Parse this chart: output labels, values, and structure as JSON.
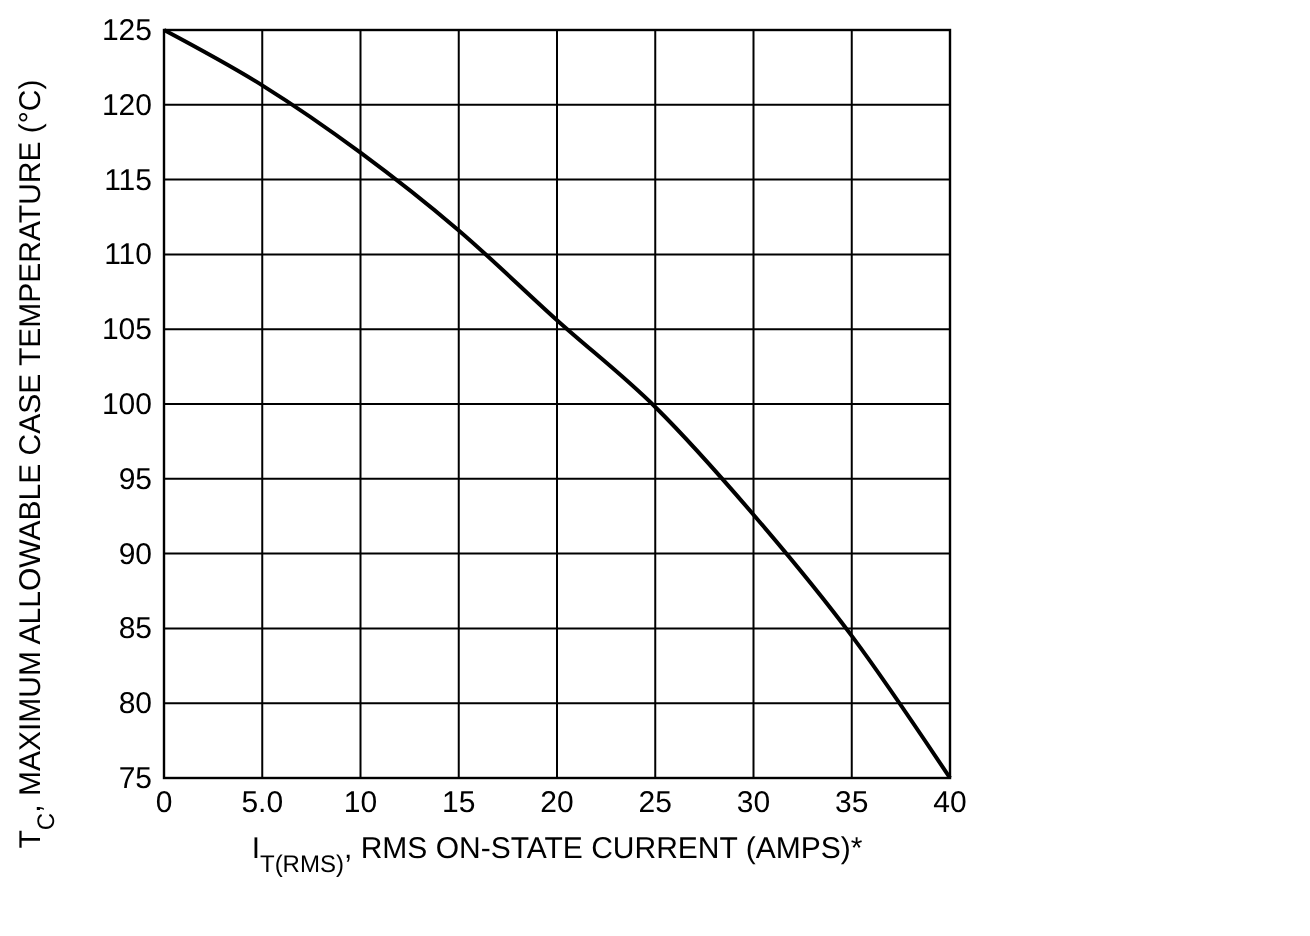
{
  "chart_data": {
    "type": "line",
    "xlabel": "I$_{T(RMS)}$, RMS ON-STATE CURRENT (AMPS)*",
    "ylabel": "T$_{C}$, MAXIMUM ALLOWABLE CASE TEMPERATURE (°C)",
    "x": [
      0,
      5,
      10,
      15,
      20,
      25,
      30,
      35,
      40
    ],
    "series": [
      {
        "color": "#000000",
        "values": [
          125,
          121.3,
          116.8,
          111.6,
          105.6,
          99.8,
          92.6,
          84.5,
          75
        ]
      }
    ],
    "xlim": [
      0,
      40
    ],
    "xticks": [
      0,
      {
        "value": 5,
        "label": "5.0"
      },
      10,
      15,
      20,
      25,
      30,
      35,
      40
    ],
    "ylim": [
      75,
      125
    ],
    "yticks": [
      75,
      80,
      85,
      90,
      95,
      100,
      105,
      110,
      115,
      120,
      125
    ],
    "grid": true,
    "marker": "none",
    "line_style": "solid"
  }
}
